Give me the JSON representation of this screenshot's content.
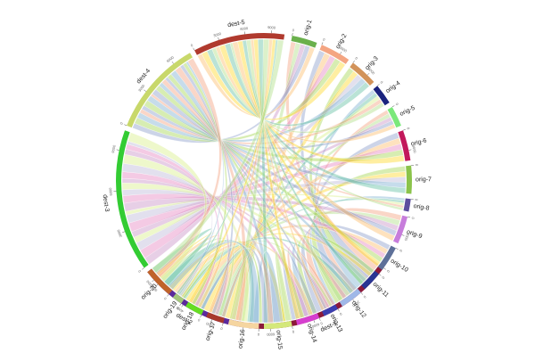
{
  "chart_data": {
    "type": "chord",
    "title": "",
    "center": [
      296,
      203
    ],
    "radius": 165,
    "groups": [
      {
        "name": "dest-1",
        "color": "#8b1a3a",
        "start": 126,
        "end": 186,
        "ticks": [
          "0",
          "2000",
          "4000",
          "6000"
        ]
      },
      {
        "name": "dest-2",
        "color": "#5b2a9c",
        "start": 188,
        "end": 232,
        "ticks": [
          "0",
          "2000",
          "4000",
          "6000"
        ]
      },
      {
        "name": "dest-3",
        "color": "#33cc33",
        "start": 234,
        "end": 290,
        "ticks": [
          "0",
          "3000",
          "6000",
          "9000"
        ]
      },
      {
        "name": "dest-4",
        "color": "#c8d86a",
        "start": 292,
        "end": 330,
        "ticks": [
          "0",
          "3000",
          "6000"
        ]
      },
      {
        "name": "dest-5",
        "color": "#b03a2e",
        "start": 332,
        "end": 368,
        "ticks": [
          "0",
          "3000",
          "6000",
          "9000"
        ]
      },
      {
        "name": "orig-1",
        "color": "#6ab04c",
        "start": 371,
        "end": 381,
        "ticks": [
          "0"
        ]
      },
      {
        "name": "orig-2",
        "color": "#f4a582",
        "start": 383,
        "end": 395,
        "ticks": [
          "0",
          "3000"
        ]
      },
      {
        "name": "orig-3",
        "color": "#d2935a",
        "start": 397,
        "end": 408,
        "ticks": [
          "0",
          "3000"
        ]
      },
      {
        "name": "orig-4",
        "color": "#1a237e",
        "start": 410,
        "end": 418,
        "ticks": [
          "0"
        ]
      },
      {
        "name": "orig-5",
        "color": "#7be87b",
        "start": 420,
        "end": 428,
        "ticks": [
          "0"
        ]
      },
      {
        "name": "orig-6",
        "color": "#c2185b",
        "start": 430,
        "end": 442,
        "ticks": [
          "0",
          "3000"
        ]
      },
      {
        "name": "orig-7",
        "color": "#8bc34a",
        "start": 444,
        "end": 455,
        "ticks": [
          "0"
        ]
      },
      {
        "name": "orig-8",
        "color": "#5c4d9e",
        "start": 457,
        "end": 462,
        "ticks": [
          "0"
        ]
      },
      {
        "name": "orig-9",
        "color": "#c77ddb",
        "start": 464,
        "end": 475,
        "ticks": [
          "0",
          "3000"
        ]
      },
      {
        "name": "orig-10",
        "color": "#5e7099",
        "start": 477,
        "end": 487,
        "ticks": [
          "0"
        ]
      },
      {
        "name": "orig-11",
        "color": "#283593",
        "start": 489,
        "end": 497,
        "ticks": [
          "0"
        ]
      },
      {
        "name": "orig-12",
        "color": "#9fb8e8",
        "start": 499,
        "end": 508,
        "ticks": [
          "0"
        ]
      },
      {
        "name": "orig-13",
        "color": "#3a3fb0",
        "start": 510,
        "end": 516,
        "ticks": [
          "0"
        ]
      },
      {
        "name": "orig-14",
        "color": "#d63fcf",
        "start": 518,
        "end": 527,
        "ticks": [
          "0"
        ]
      },
      {
        "name": "orig-15",
        "color": "#d4e87a",
        "start": 529,
        "end": 540,
        "ticks": [
          "0"
        ]
      },
      {
        "name": "orig-16",
        "color": "#f5d5a0",
        "start": 542,
        "end": 554,
        "ticks": [
          "0"
        ]
      },
      {
        "name": "orig-17",
        "color": "#a8382c",
        "start": 556,
        "end": 563,
        "ticks": [
          "0"
        ]
      },
      {
        "name": "orig-18",
        "color": "#66dd22",
        "start": 565,
        "end": 572,
        "ticks": [
          "0"
        ]
      },
      {
        "name": "orig-19",
        "color": "#a3c77a",
        "start": 574,
        "end": 578,
        "ticks": [
          "0"
        ]
      },
      {
        "name": "orig-20",
        "color": "#c0642a",
        "start": 580,
        "end": 592,
        "ticks": [
          "0",
          "3000"
        ]
      }
    ],
    "chord_palette": [
      "#f4a582",
      "#b2df8a",
      "#c994c7",
      "#8da0cb",
      "#fdbf6f",
      "#e78ac3",
      "#a6d854",
      "#ffd92f",
      "#bebada",
      "#80b1d3",
      "#66c2a5",
      "#d9ef8b"
    ],
    "chord_opacity": 0.45
  }
}
